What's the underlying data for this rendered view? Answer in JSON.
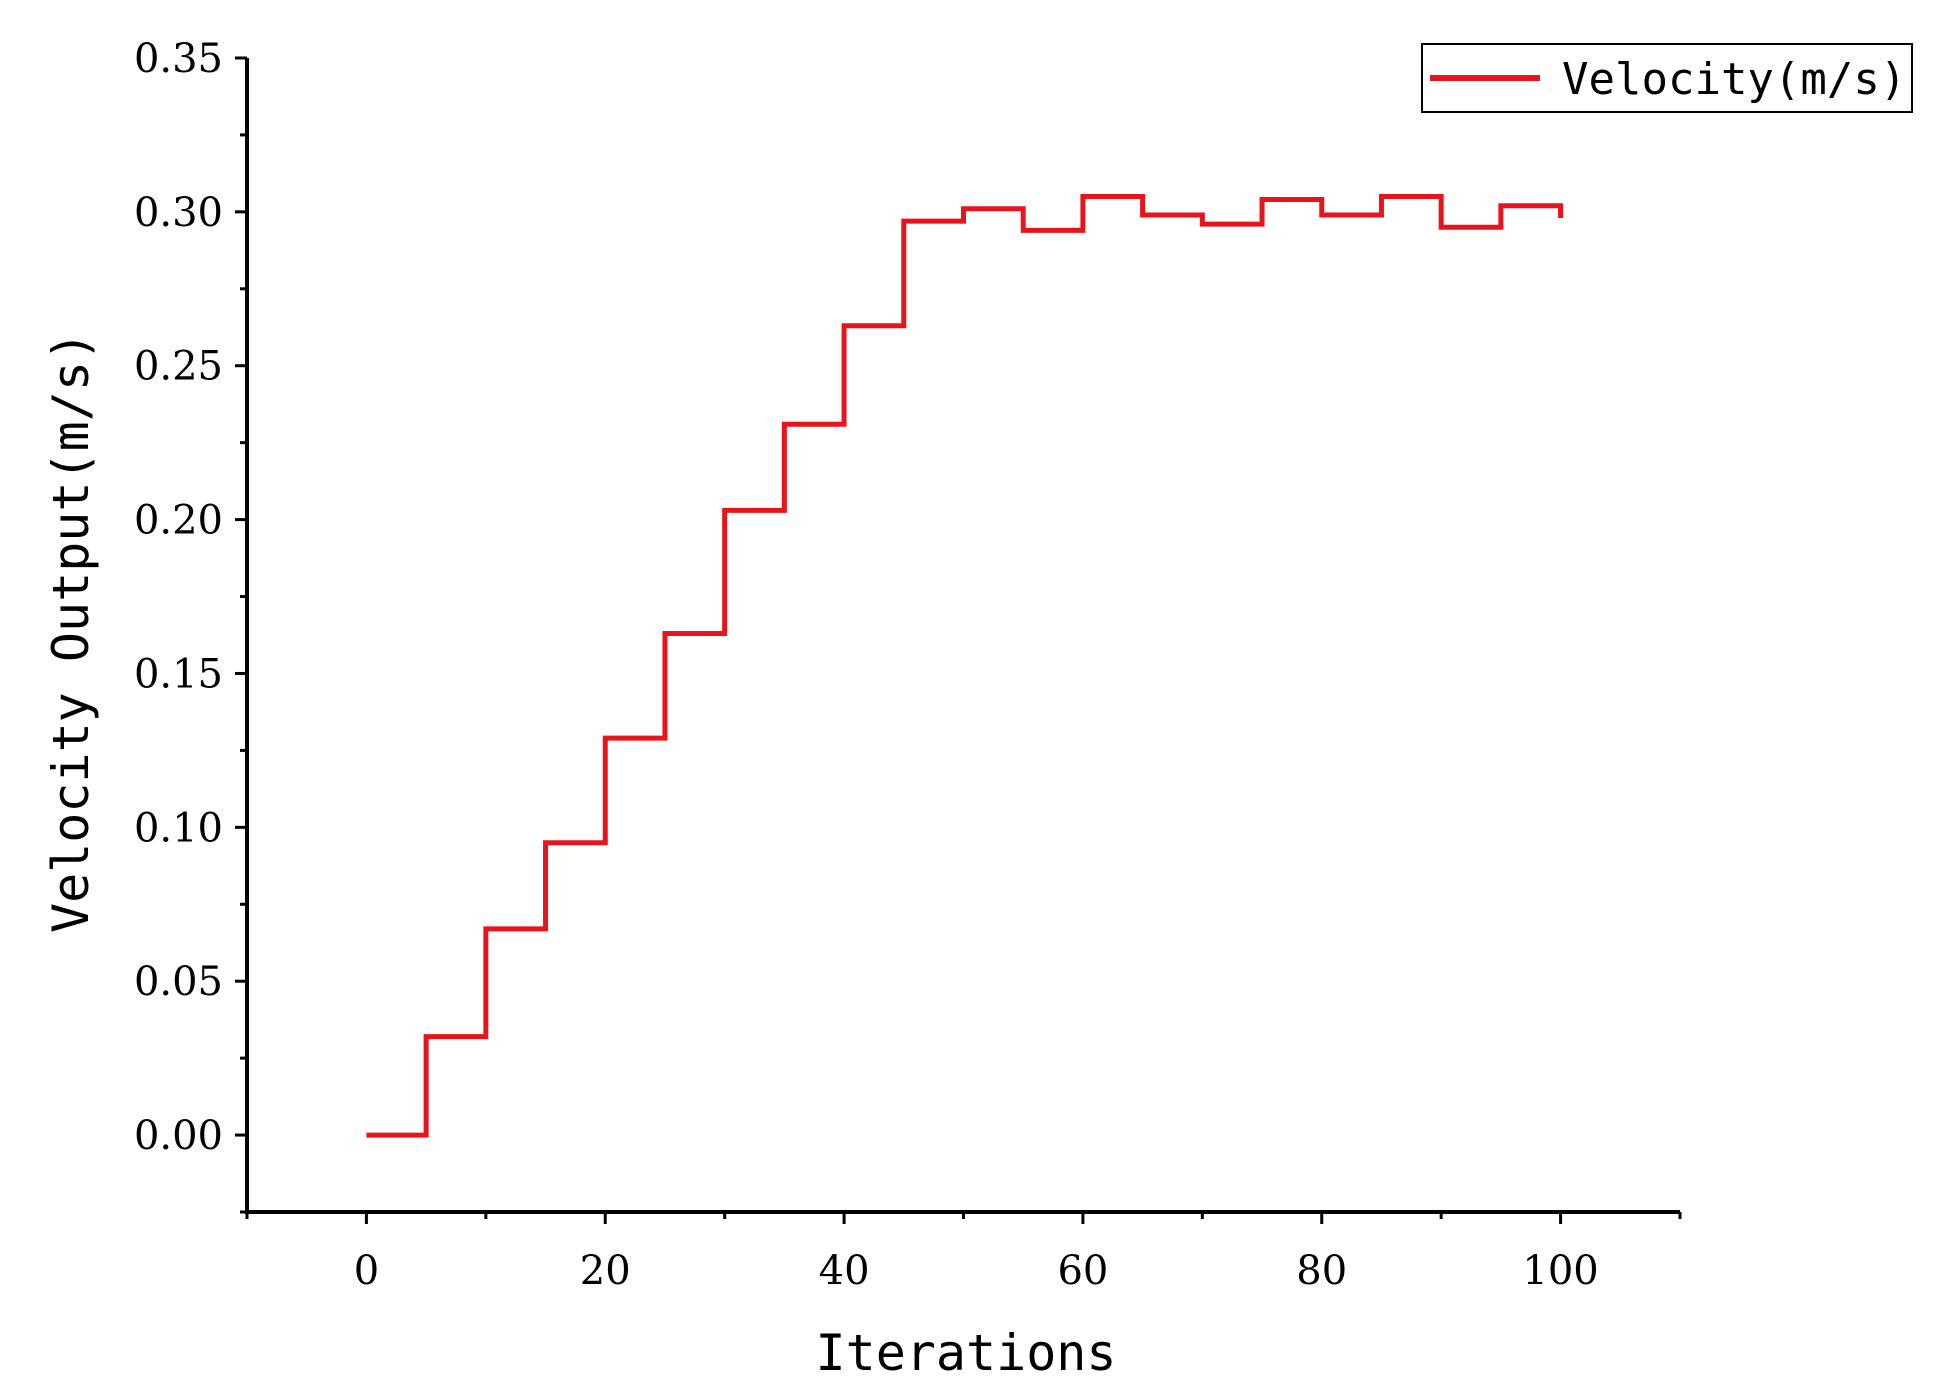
{
  "chart_data": {
    "type": "line",
    "step": true,
    "xlabel": "Iterations",
    "ylabel": "Velocity Output(m/s)",
    "xlim": [
      -10,
      110
    ],
    "ylim": [
      -0.025,
      0.35
    ],
    "x_ticks": [
      0,
      20,
      40,
      60,
      80,
      100
    ],
    "x_tick_labels": [
      "0",
      "20",
      "40",
      "60",
      "80",
      "100"
    ],
    "y_ticks": [
      0.0,
      0.05,
      0.1,
      0.15,
      0.2,
      0.25,
      0.3,
      0.35
    ],
    "y_tick_labels": [
      "0.00",
      "0.05",
      "0.10",
      "0.15",
      "0.20",
      "0.25",
      "0.30",
      "0.35"
    ],
    "grid": false,
    "legend_position": "top-right",
    "series": [
      {
        "name": "Velocity(m/s)",
        "color": "#e8141b",
        "x": [
          0,
          5,
          10,
          15,
          20,
          25,
          30,
          35,
          40,
          45,
          50,
          55,
          60,
          65,
          70,
          75,
          80,
          85,
          90,
          95,
          100
        ],
        "values": [
          0.0,
          0.032,
          0.067,
          0.095,
          0.129,
          0.163,
          0.203,
          0.231,
          0.263,
          0.297,
          0.301,
          0.294,
          0.305,
          0.299,
          0.296,
          0.304,
          0.299,
          0.305,
          0.295,
          0.302,
          0.298
        ]
      }
    ]
  }
}
